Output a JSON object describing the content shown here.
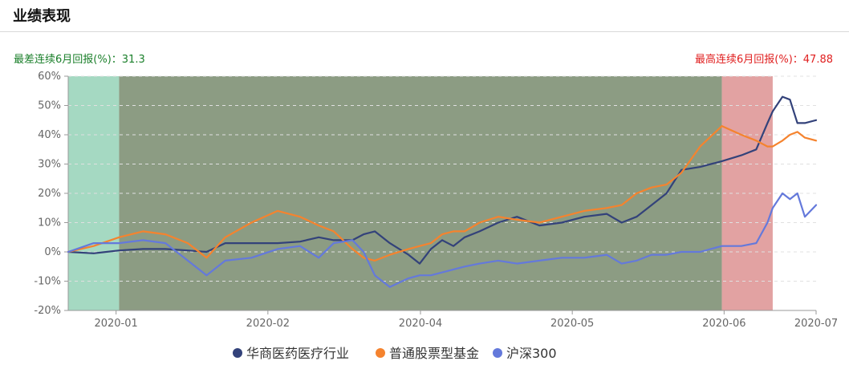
{
  "title": "业绩表现",
  "worst": {
    "label": "最差连续6月回报(%)：",
    "value": "31.3"
  },
  "best": {
    "label": "最高连续6月回报(%)：",
    "value": "47.88"
  },
  "colors": {
    "fund": "#33427a",
    "category": "#f5832e",
    "index": "#6479db",
    "worst_band": "#a5d9c2",
    "middle_band": "#8c9c83",
    "best_band": "#e2a2a2",
    "worst_text": "#1a7f2a",
    "best_text": "#e02020"
  },
  "chart_data": {
    "type": "line",
    "x_ticks": [
      "2020-01",
      "2020-02",
      "2020-04",
      "2020-05",
      "2020-06",
      "2020-07"
    ],
    "x_tick_fraction": [
      0.064,
      0.267,
      0.471,
      0.674,
      0.877,
      1.0
    ],
    "y_ticks": [
      "60%",
      "50%",
      "40%",
      "30%",
      "20%",
      "10%",
      "0%",
      "-10%",
      "-20%"
    ],
    "ylim": [
      -20,
      60
    ],
    "grid": "horizontal dashed",
    "legend_position": "bottom",
    "bands": [
      {
        "name": "worst",
        "x_range": [
          0.0,
          0.068
        ]
      },
      {
        "name": "middle",
        "x_range": [
          0.068,
          0.874
        ]
      },
      {
        "name": "best",
        "x_range": [
          0.874,
          0.942
        ]
      }
    ],
    "x_fraction": [
      0.0,
      0.034,
      0.068,
      0.1,
      0.13,
      0.16,
      0.185,
      0.21,
      0.245,
      0.28,
      0.31,
      0.335,
      0.355,
      0.38,
      0.395,
      0.41,
      0.43,
      0.455,
      0.47,
      0.485,
      0.5,
      0.515,
      0.53,
      0.55,
      0.575,
      0.6,
      0.63,
      0.66,
      0.69,
      0.72,
      0.74,
      0.76,
      0.78,
      0.8,
      0.82,
      0.845,
      0.874,
      0.9,
      0.92,
      0.935,
      0.942,
      0.955,
      0.965,
      0.975,
      0.985,
      1.0
    ],
    "series": [
      {
        "name": "华商医药医疗行业",
        "color_key": "fund",
        "values": [
          0,
          -0.5,
          0.5,
          1,
          1,
          0.5,
          0,
          3,
          3,
          3,
          3.5,
          5,
          4,
          4,
          6,
          7,
          3,
          -1,
          -4,
          1,
          4,
          2,
          5,
          7,
          10,
          12,
          9,
          10,
          12,
          13,
          10,
          12,
          16,
          20,
          28,
          29,
          31,
          33,
          35,
          44,
          48,
          53,
          52,
          44,
          44,
          45
        ]
      },
      {
        "name": "普通股票型基金",
        "color_key": "category",
        "values": [
          0,
          2,
          5,
          7,
          6,
          3,
          -2,
          5,
          10,
          14,
          12,
          9,
          7,
          1,
          -2,
          -3,
          -1,
          1,
          2,
          3,
          6,
          7,
          7,
          10,
          12,
          11,
          10,
          12,
          14,
          15,
          16,
          20,
          22,
          23,
          27,
          36,
          43,
          40,
          38,
          36,
          36,
          38,
          40,
          41,
          39,
          38
        ]
      },
      {
        "name": "沪深300",
        "color_key": "index",
        "values": [
          0,
          3,
          3,
          4,
          3,
          -3,
          -8,
          -3,
          -2,
          1,
          2,
          -2,
          3,
          4,
          0,
          -8,
          -12,
          -9,
          -8,
          -8,
          -7,
          -6,
          -5,
          -4,
          -3,
          -4,
          -3,
          -2,
          -2,
          -1,
          -4,
          -3,
          -1,
          -1,
          0,
          0,
          2,
          2,
          3,
          10,
          15,
          20,
          18,
          20,
          12,
          16
        ]
      }
    ]
  }
}
